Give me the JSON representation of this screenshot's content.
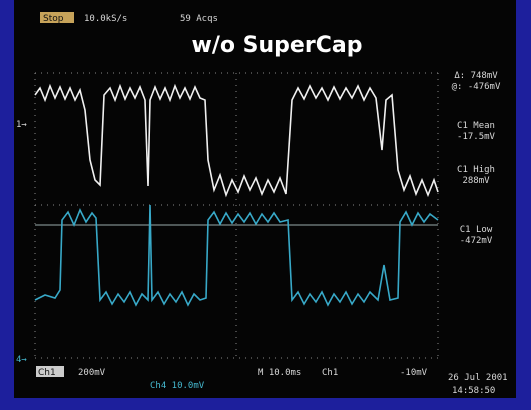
{
  "status_bar": {
    "state": "Stop",
    "sample_rate": "10.0kS/s",
    "acquisitions": "59 Acqs"
  },
  "title": "w/o SuperCap",
  "readouts": [
    {
      "line1": "Δ: 748mV",
      "line2": "@: -476mV"
    },
    {
      "line1": "C1 Mean",
      "line2": "-17.5mV"
    },
    {
      "line1": "C1 High",
      "line2": "288mV"
    },
    {
      "line1": "C1 Low",
      "line2": "-472mV"
    }
  ],
  "bottom_bar": {
    "channel": "Ch1",
    "scale": "200mV",
    "timebase": "M 10.0ms",
    "trigger_channel": "Ch1",
    "trigger_level": "-10mV",
    "ch4": "Ch4  10.0mV",
    "date": "26 Jul 2001",
    "time": "14:58:50"
  }
}
